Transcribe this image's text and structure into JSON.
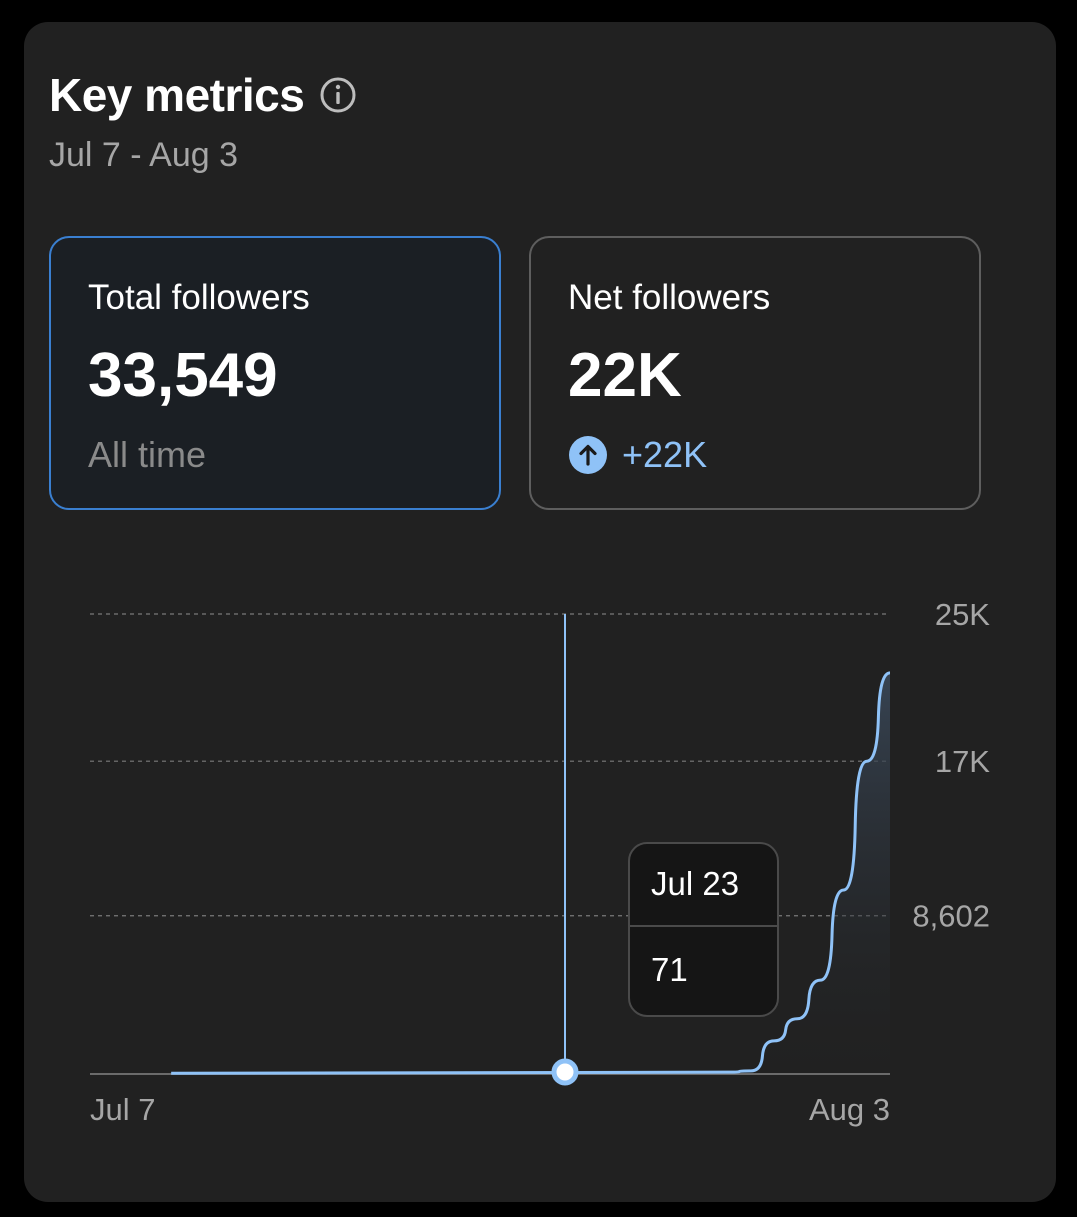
{
  "header": {
    "title": "Key metrics",
    "date_range": "Jul 7 - Aug 3",
    "info_icon": "info-circle-icon"
  },
  "metrics": [
    {
      "label": "Total followers",
      "value": "33,549",
      "subtitle": "All time",
      "selected": true
    },
    {
      "label": "Net followers",
      "value": "22K",
      "delta": "+22K",
      "delta_icon": "arrow-up-circle-icon",
      "selected": false
    }
  ],
  "colors": {
    "accent": "#8fc2f7",
    "selected_border": "#3a7fd0",
    "card_bg": "#212121"
  },
  "chart_data": {
    "type": "area",
    "x_labels": [
      "Jul 7",
      "Aug 3"
    ],
    "y_ticks": [
      "25K",
      "17K",
      "8,602"
    ],
    "y_tick_values": [
      25000,
      17000,
      8602
    ],
    "ylim": [
      0,
      25000
    ],
    "grid": true,
    "series": [
      {
        "x": [
          3.5,
          27.5,
          28.5,
          29.5,
          30.5,
          31.5,
          32.5,
          33.5,
          34.5
        ],
        "y": [
          40,
          100,
          170,
          1800,
          3000,
          5100,
          10000,
          17000,
          21800
        ]
      }
    ],
    "tooltip": {
      "date": "Jul 23",
      "value": "71"
    }
  }
}
